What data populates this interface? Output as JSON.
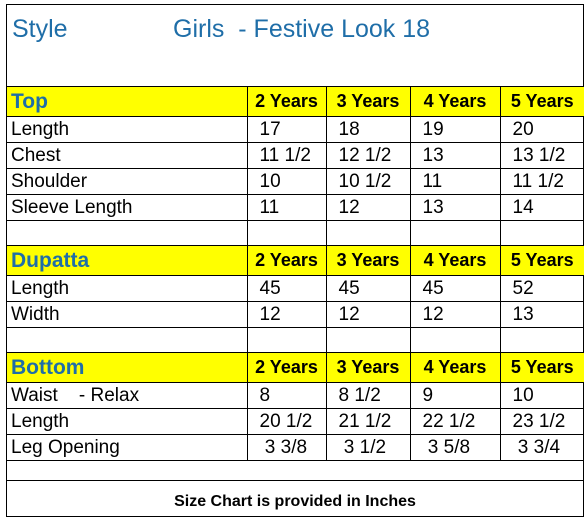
{
  "header": {
    "style_label": "Style",
    "title": "Girls  - Festive Look 18"
  },
  "sizes": [
    "2 Years",
    "3 Years",
    "4 Years",
    "5 Years"
  ],
  "sections": [
    {
      "name": "Top",
      "rows": [
        {
          "label": "Length",
          "values": [
            "17",
            "18",
            "19",
            "20"
          ]
        },
        {
          "label": "Chest",
          "values": [
            "11 1/2",
            "12 1/2",
            "13",
            "13 1/2"
          ]
        },
        {
          "label": "Shoulder",
          "values": [
            "10",
            "10 1/2",
            "11",
            "11 1/2"
          ]
        },
        {
          "label": "Sleeve Length",
          "values": [
            "11",
            "12",
            "13",
            "14"
          ]
        }
      ]
    },
    {
      "name": "Dupatta",
      "rows": [
        {
          "label": "Length",
          "values": [
            "45",
            "45",
            "45",
            "52"
          ]
        },
        {
          "label": "Width",
          "values": [
            "12",
            "12",
            "12",
            "13"
          ]
        }
      ]
    },
    {
      "name": "Bottom",
      "rows": [
        {
          "label": "Waist    - Relax",
          "values": [
            "8",
            "8 1/2",
            "9",
            "10"
          ]
        },
        {
          "label": "Length",
          "values": [
            "20 1/2",
            "21 1/2",
            "22 1/2",
            "23 1/2"
          ]
        },
        {
          "label": "Leg Opening",
          "values": [
            " 3 3/8",
            " 3 1/2",
            " 3 5/8",
            " 3 3/4"
          ]
        }
      ]
    }
  ],
  "footer": {
    "note": "Size Chart is provided in Inches"
  },
  "colors": {
    "section_fill": "#ffff00",
    "heading_text": "#1f6ea8"
  }
}
